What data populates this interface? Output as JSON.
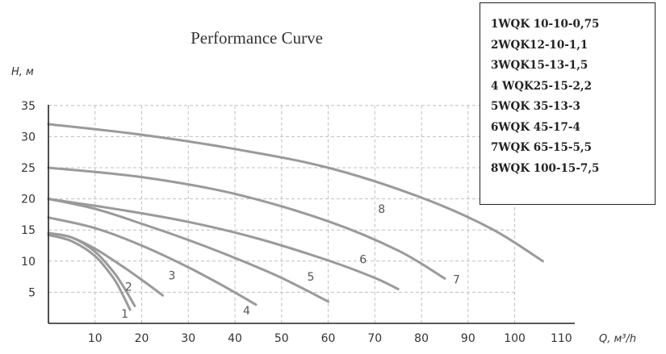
{
  "chart_data": {
    "type": "line",
    "title": "Performance Curve",
    "ylabel": "H, м",
    "xlabel": "Q, м³/h",
    "xlim": [
      0,
      110
    ],
    "ylim": [
      0,
      35
    ],
    "x_ticks": [
      "10",
      "20",
      "30",
      "40",
      "50",
      "60",
      "70",
      "80",
      "90",
      "100",
      "110"
    ],
    "y_ticks": [
      "5",
      "10",
      "15",
      "20",
      "25",
      "30",
      "35"
    ],
    "grid": true,
    "legend_position": "top-right",
    "series": [
      {
        "name": "1WQK 10-10-0,75",
        "label": "1",
        "x": [
          0,
          5,
          10,
          14,
          16,
          17.5
        ],
        "y": [
          14.2,
          13.2,
          10.8,
          7.2,
          4.5,
          2.2
        ]
      },
      {
        "name": "2WQK12-10-1,1",
        "label": "2",
        "x": [
          0,
          5,
          10,
          14,
          16.5,
          18.5
        ],
        "y": [
          14.5,
          13.8,
          11.5,
          8.2,
          5.4,
          2.8
        ]
      },
      {
        "name": "3WQK15-13-1,5",
        "label": "3",
        "x": [
          0,
          5,
          10,
          15,
          20,
          24.5
        ],
        "y": [
          14.5,
          13.8,
          12.0,
          9.6,
          7.0,
          4.5
        ]
      },
      {
        "name": "4 WQK25-15-2,2",
        "label": "4",
        "x": [
          0,
          10,
          20,
          30,
          38,
          44.5
        ],
        "y": [
          17.0,
          15.3,
          12.5,
          9.0,
          5.8,
          3.0
        ]
      },
      {
        "name": "5WQK 35-13-3",
        "label": "5",
        "x": [
          0,
          10,
          20,
          30,
          40,
          50,
          60
        ],
        "y": [
          20.0,
          18.4,
          16.0,
          13.4,
          10.5,
          7.3,
          3.5
        ]
      },
      {
        "name": "6WQK 45-17-4",
        "label": "6",
        "x": [
          0,
          15,
          30,
          45,
          60,
          70,
          75
        ],
        "y": [
          20.0,
          18.3,
          16.3,
          13.6,
          10.1,
          7.3,
          5.5
        ]
      },
      {
        "name": "7WQK 65-15-5,5",
        "label": "7",
        "x": [
          0,
          20,
          40,
          60,
          75,
          85
        ],
        "y": [
          25.0,
          23.5,
          20.8,
          16.4,
          11.7,
          7.2
        ]
      },
      {
        "name": "8WQK 100-15-7,5",
        "label": "8",
        "x": [
          0,
          20,
          40,
          60,
          80,
          95,
          106
        ],
        "y": [
          32.0,
          30.3,
          28.0,
          25.0,
          20.2,
          15.2,
          10.0
        ]
      }
    ]
  }
}
